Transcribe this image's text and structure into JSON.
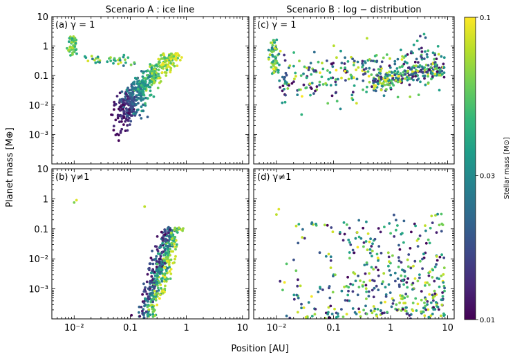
{
  "chart_data": {
    "type": "scatter",
    "ylabel": "Planet mass [M⊕]",
    "xlabel": "Position [AU]",
    "x_scale": "log",
    "y_scale": "log",
    "xlim": [
      0.004,
      13
    ],
    "ylim": [
      0.0001,
      10
    ],
    "x_ticks": [
      {
        "value": 0.01,
        "label": "10⁻²"
      },
      {
        "value": 0.1,
        "label": "0.1"
      },
      {
        "value": 1,
        "label": "1"
      },
      {
        "value": 10,
        "label": "10"
      }
    ],
    "y_ticks": [
      {
        "value": 10,
        "label": "10"
      },
      {
        "value": 1,
        "label": "1"
      },
      {
        "value": 0.1,
        "label": "0.1"
      },
      {
        "value": 0.01,
        "label": "10⁻²"
      },
      {
        "value": 0.001,
        "label": "10⁻³"
      }
    ],
    "column_titles": [
      "Scenario A :  ice line",
      "Scenario B :  log − distribution"
    ],
    "panels": [
      {
        "label": "(a) γ = 1",
        "scenario": "ice line"
      },
      {
        "label": "(c) γ = 1",
        "scenario": "log-distribution"
      },
      {
        "label": "(b) γ≠1",
        "scenario": "ice line"
      },
      {
        "label": "(d) γ≠1",
        "scenario": "log-distribution"
      }
    ],
    "colorbar": {
      "label": "Stellar mass [M⊙]",
      "scale": "log",
      "range": [
        0.01,
        0.1
      ],
      "ticks": [
        "0.1",
        "0.03",
        "0.01"
      ],
      "colormap": "viridis",
      "stops": [
        "#440154",
        "#482878",
        "#3e4989",
        "#31688e",
        "#26828e",
        "#1f9e89",
        "#35b779",
        "#6ece58",
        "#b5de2b",
        "#fde725"
      ]
    }
  }
}
